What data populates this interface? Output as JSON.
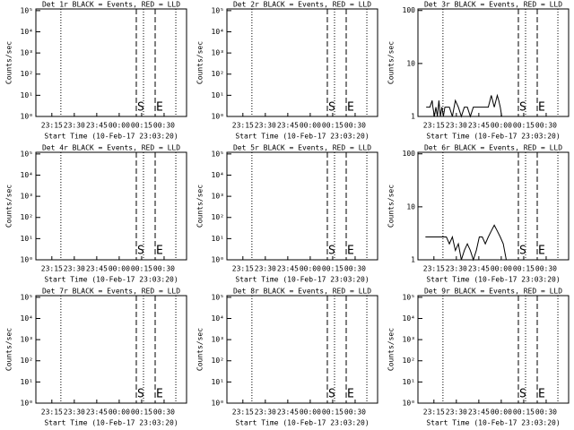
{
  "chart_data": [
    {
      "type": "line",
      "title": "Det 1r BLACK = Events, RED = LLD",
      "ylabel": "Counts/sec",
      "xlabel": "Start Time (10-Feb-17 23:03:20)",
      "log_y": true,
      "xlim": [
        1,
        101.67
      ],
      "xticks": [
        {
          "value": 11.667,
          "label": "23:15"
        },
        {
          "value": 26.667,
          "label": "23:30"
        },
        {
          "value": 41.667,
          "label": "23:45"
        },
        {
          "value": 56.667,
          "label": "00:00"
        },
        {
          "value": 71.667,
          "label": "00:15"
        },
        {
          "value": 86.667,
          "label": "00:30"
        }
      ],
      "ylim": [
        1,
        120000
      ],
      "yticks": [
        {
          "value": 1,
          "label": "10⁰"
        },
        {
          "value": 10,
          "label": "10¹"
        },
        {
          "value": 100,
          "label": "10²"
        },
        {
          "value": 1000,
          "label": "10³"
        },
        {
          "value": 10000,
          "label": "10⁴"
        },
        {
          "value": 100000,
          "label": "10⁵"
        }
      ],
      "dotted_lines": [
        17.7,
        72.9,
        94.5
      ],
      "markers": [
        {
          "label": "S",
          "x": 68.1
        },
        {
          "label": "E",
          "x": 80.7
        }
      ]
    },
    {
      "type": "line",
      "title": "Det 2r BLACK = Events, RED = LLD",
      "ylabel": "Counts/sec",
      "xlabel": "Start Time (10-Feb-17 23:03:20)",
      "log_y": true,
      "xlim": [
        1,
        101.67
      ],
      "xticks": [
        {
          "value": 11.667,
          "label": "23:15"
        },
        {
          "value": 26.667,
          "label": "23:30"
        },
        {
          "value": 41.667,
          "label": "23:45"
        },
        {
          "value": 56.667,
          "label": "00:00"
        },
        {
          "value": 71.667,
          "label": "00:15"
        },
        {
          "value": 86.667,
          "label": "00:30"
        }
      ],
      "ylim": [
        1,
        120000
      ],
      "yticks": [
        {
          "value": 1,
          "label": "10⁰"
        },
        {
          "value": 10,
          "label": "10¹"
        },
        {
          "value": 100,
          "label": "10²"
        },
        {
          "value": 1000,
          "label": "10³"
        },
        {
          "value": 10000,
          "label": "10⁴"
        },
        {
          "value": 100000,
          "label": "10⁵"
        }
      ],
      "dotted_lines": [
        17.7,
        72.9,
        94.5
      ],
      "markers": [
        {
          "label": "S",
          "x": 68.1
        },
        {
          "label": "E",
          "x": 80.7
        }
      ]
    },
    {
      "type": "line",
      "title": "Det 3r BLACK = Events, RED = LLD",
      "ylabel": "Counts/sec",
      "xlabel": "Start Time (10-Feb-17 23:03:20)",
      "log_y": true,
      "xlim": [
        1,
        101.67
      ],
      "xticks": [
        {
          "value": 11.667,
          "label": "23:15"
        },
        {
          "value": 26.667,
          "label": "23:30"
        },
        {
          "value": 41.667,
          "label": "23:45"
        },
        {
          "value": 56.667,
          "label": "00:00"
        },
        {
          "value": 71.667,
          "label": "00:15"
        },
        {
          "value": 86.667,
          "label": "00:30"
        }
      ],
      "ylim": [
        1,
        107
      ],
      "yticks": [
        1,
        10,
        100
      ],
      "dotted_lines": [
        17.7,
        72.9,
        94.5
      ],
      "markers": [
        {
          "label": "S",
          "x": 68.1
        },
        {
          "label": "E",
          "x": 80.7
        }
      ],
      "series": [
        {
          "color": "#000000",
          "x": [
            6.5,
            9,
            10.5,
            11,
            12,
            13,
            14,
            15,
            16,
            17,
            18,
            19,
            20,
            22,
            24,
            26,
            28,
            30,
            32,
            34,
            36,
            38,
            40,
            42,
            44,
            46,
            48,
            50,
            52,
            54,
            55,
            56,
            57
          ],
          "values": [
            1.5,
            1.5,
            2,
            1.5,
            1,
            1.5,
            1,
            2,
            1,
            1.5,
            1,
            1.5,
            1.5,
            1.5,
            1,
            2,
            1.5,
            1,
            1.5,
            1.5,
            1,
            1.5,
            1.5,
            1.5,
            1.5,
            1.5,
            1.5,
            2.5,
            1.5,
            2.5,
            2,
            1.5,
            1
          ]
        }
      ]
    },
    {
      "type": "line",
      "title": "Det 4r BLACK = Events, RED = LLD",
      "ylabel": "Counts/sec",
      "xlabel": "Start Time (10-Feb-17 23:03:20)",
      "log_y": true,
      "xlim": [
        1,
        101.67
      ],
      "xticks": [
        {
          "value": 11.667,
          "label": "23:15"
        },
        {
          "value": 26.667,
          "label": "23:30"
        },
        {
          "value": 41.667,
          "label": "23:45"
        },
        {
          "value": 56.667,
          "label": "00:00"
        },
        {
          "value": 71.667,
          "label": "00:15"
        },
        {
          "value": 86.667,
          "label": "00:30"
        }
      ],
      "ylim": [
        1,
        120000
      ],
      "yticks": [
        {
          "value": 1,
          "label": "10⁰"
        },
        {
          "value": 10,
          "label": "10¹"
        },
        {
          "value": 100,
          "label": "10²"
        },
        {
          "value": 1000,
          "label": "10³"
        },
        {
          "value": 10000,
          "label": "10⁴"
        },
        {
          "value": 100000,
          "label": "10⁵"
        }
      ],
      "dotted_lines": [
        17.7,
        72.9,
        94.5
      ],
      "markers": [
        {
          "label": "S",
          "x": 68.1
        },
        {
          "label": "E",
          "x": 80.7
        }
      ]
    },
    {
      "type": "line",
      "title": "Det 5r BLACK = Events, RED = LLD",
      "ylabel": "Counts/sec",
      "xlabel": "Start Time (10-Feb-17 23:03:20)",
      "log_y": true,
      "xlim": [
        1,
        101.67
      ],
      "xticks": [
        {
          "value": 11.667,
          "label": "23:15"
        },
        {
          "value": 26.667,
          "label": "23:30"
        },
        {
          "value": 41.667,
          "label": "23:45"
        },
        {
          "value": 56.667,
          "label": "00:00"
        },
        {
          "value": 71.667,
          "label": "00:15"
        },
        {
          "value": 86.667,
          "label": "00:30"
        }
      ],
      "ylim": [
        1,
        120000
      ],
      "yticks": [
        {
          "value": 1,
          "label": "10⁰"
        },
        {
          "value": 10,
          "label": "10¹"
        },
        {
          "value": 100,
          "label": "10²"
        },
        {
          "value": 1000,
          "label": "10³"
        },
        {
          "value": 10000,
          "label": "10⁴"
        },
        {
          "value": 100000,
          "label": "10⁵"
        }
      ],
      "dotted_lines": [
        17.7,
        72.9,
        94.5
      ],
      "markers": [
        {
          "label": "S",
          "x": 68.1
        },
        {
          "label": "E",
          "x": 80.7
        }
      ]
    },
    {
      "type": "line",
      "title": "Det 6r BLACK = Events, RED = LLD",
      "ylabel": "Counts/sec",
      "xlabel": "Start Time (10-Feb-17 23:03:20)",
      "log_y": true,
      "xlim": [
        1,
        101.67
      ],
      "xticks": [
        {
          "value": 11.667,
          "label": "23:15"
        },
        {
          "value": 26.667,
          "label": "23:30"
        },
        {
          "value": 41.667,
          "label": "23:45"
        },
        {
          "value": 56.667,
          "label": "00:00"
        },
        {
          "value": 71.667,
          "label": "00:15"
        },
        {
          "value": 86.667,
          "label": "00:30"
        }
      ],
      "ylim": [
        1,
        107
      ],
      "yticks": [
        1,
        10,
        100
      ],
      "dotted_lines": [
        17.7,
        72.9,
        94.5
      ],
      "markers": [
        {
          "label": "S",
          "x": 68.1
        },
        {
          "label": "E",
          "x": 80.7
        }
      ],
      "series": [
        {
          "color": "#000000",
          "x": [
            6,
            8,
            10,
            12,
            14,
            16,
            18,
            20,
            22,
            24,
            26,
            28,
            30,
            32,
            34,
            36,
            38,
            40,
            42,
            44,
            46,
            48,
            50,
            52,
            54,
            56,
            58,
            60
          ],
          "values": [
            2.7,
            2.7,
            2.7,
            2.7,
            2.7,
            2.7,
            2.7,
            2.7,
            2,
            2.7,
            1.5,
            2,
            1,
            1.5,
            2,
            1.5,
            1,
            1.5,
            2.7,
            2.7,
            2,
            2.7,
            3.5,
            4.5,
            3.5,
            2.7,
            2,
            1
          ]
        }
      ]
    },
    {
      "type": "line",
      "title": "Det 7r BLACK = Events, RED = LLD",
      "ylabel": "Counts/sec",
      "xlabel": "Start Time (10-Feb-17 23:03:20)",
      "log_y": true,
      "xlim": [
        1,
        101.67
      ],
      "xticks": [
        {
          "value": 11.667,
          "label": "23:15"
        },
        {
          "value": 26.667,
          "label": "23:30"
        },
        {
          "value": 41.667,
          "label": "23:45"
        },
        {
          "value": 56.667,
          "label": "00:00"
        },
        {
          "value": 71.667,
          "label": "00:15"
        },
        {
          "value": 86.667,
          "label": "00:30"
        }
      ],
      "ylim": [
        1,
        120000
      ],
      "yticks": [
        {
          "value": 1,
          "label": "10⁰"
        },
        {
          "value": 10,
          "label": "10¹"
        },
        {
          "value": 100,
          "label": "10²"
        },
        {
          "value": 1000,
          "label": "10³"
        },
        {
          "value": 10000,
          "label": "10⁴"
        },
        {
          "value": 100000,
          "label": "10⁵"
        }
      ],
      "dotted_lines": [
        17.7,
        72.9,
        94.5
      ],
      "markers": [
        {
          "label": "S",
          "x": 68.1
        },
        {
          "label": "E",
          "x": 80.7
        }
      ]
    },
    {
      "type": "line",
      "title": "Det 8r BLACK = Events, RED = LLD",
      "ylabel": "Counts/sec",
      "xlabel": "Start Time (10-Feb-17 23:03:20)",
      "log_y": true,
      "xlim": [
        1,
        101.67
      ],
      "xticks": [
        {
          "value": 11.667,
          "label": "23:15"
        },
        {
          "value": 26.667,
          "label": "23:30"
        },
        {
          "value": 41.667,
          "label": "23:45"
        },
        {
          "value": 56.667,
          "label": "00:00"
        },
        {
          "value": 71.667,
          "label": "00:15"
        },
        {
          "value": 86.667,
          "label": "00:30"
        }
      ],
      "ylim": [
        1,
        120000
      ],
      "yticks": [
        {
          "value": 1,
          "label": "10⁰"
        },
        {
          "value": 10,
          "label": "10¹"
        },
        {
          "value": 100,
          "label": "10²"
        },
        {
          "value": 1000,
          "label": "10³"
        },
        {
          "value": 10000,
          "label": "10⁴"
        },
        {
          "value": 100000,
          "label": "10⁵"
        }
      ],
      "dotted_lines": [
        17.7,
        72.9,
        94.5
      ],
      "markers": [
        {
          "label": "S",
          "x": 68.1
        },
        {
          "label": "E",
          "x": 80.7
        }
      ]
    },
    {
      "type": "line",
      "title": "Det 9r BLACK = Events, RED = LLD",
      "ylabel": "Counts/sec",
      "xlabel": "Start Time (10-Feb-17 23:03:20)",
      "log_y": true,
      "xlim": [
        1,
        101.67
      ],
      "xticks": [
        {
          "value": 11.667,
          "label": "23:15"
        },
        {
          "value": 26.667,
          "label": "23:30"
        },
        {
          "value": 41.667,
          "label": "23:45"
        },
        {
          "value": 56.667,
          "label": "00:00"
        },
        {
          "value": 71.667,
          "label": "00:15"
        },
        {
          "value": 86.667,
          "label": "00:30"
        }
      ],
      "ylim": [
        1,
        120000
      ],
      "yticks": [
        {
          "value": 1,
          "label": "10⁰"
        },
        {
          "value": 10,
          "label": "10¹"
        },
        {
          "value": 100,
          "label": "10²"
        },
        {
          "value": 1000,
          "label": "10³"
        },
        {
          "value": 10000,
          "label": "10⁴"
        },
        {
          "value": 100000,
          "label": "10⁵"
        }
      ],
      "dotted_lines": [
        17.7,
        72.9,
        94.5
      ],
      "markers": [
        {
          "label": "S",
          "x": 68.1
        },
        {
          "label": "E",
          "x": 80.7
        }
      ]
    }
  ]
}
